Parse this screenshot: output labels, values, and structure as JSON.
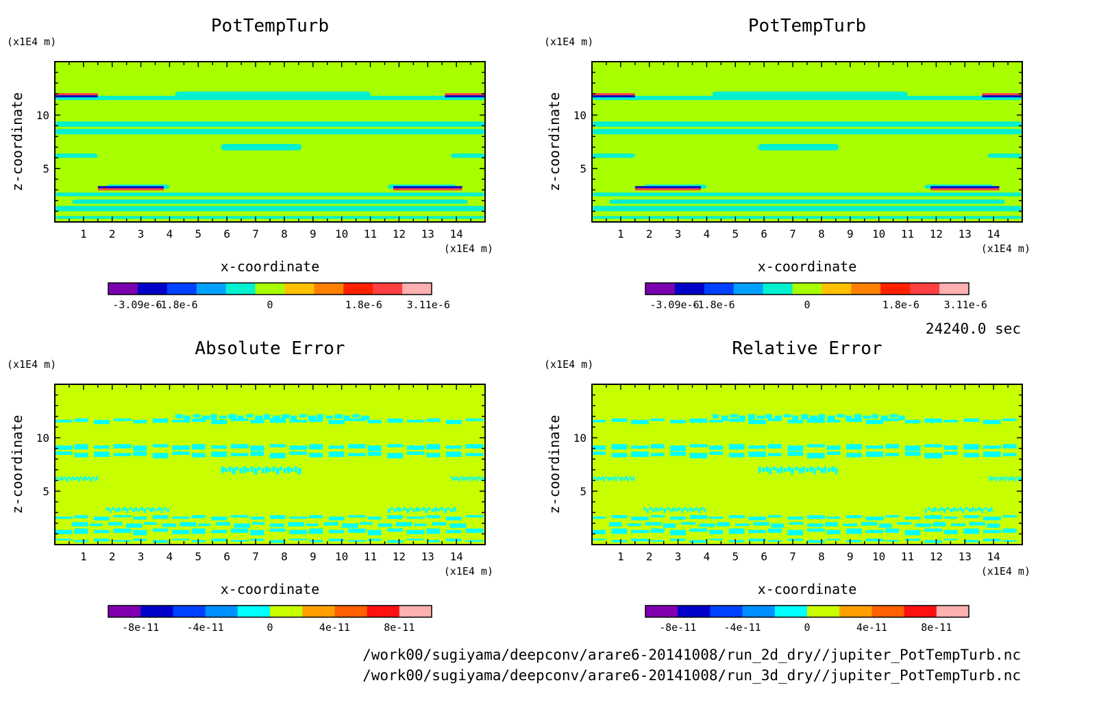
{
  "timestamp": "24240.0 sec",
  "footer": {
    "lines": [
      "/work00/sugiyama/deepconv/arare6-20141008/run_2d_dry//jupiter_PotTempTurb.nc",
      "/work00/sugiyama/deepconv/arare6-20141008/run_3d_dry//jupiter_PotTempTurb.nc"
    ]
  },
  "chart_data": [
    {
      "type": "heatmap",
      "title": "PotTempTurb",
      "xlabel": "x-coordinate",
      "ylabel": "z-coordinate",
      "x_unit": "(x1E4 m)",
      "y_unit": "(x1E4 m)",
      "xlim": [
        0,
        15
      ],
      "ylim": [
        0,
        15
      ],
      "x_ticks": [
        "1",
        "2",
        "3",
        "4",
        "5",
        "6",
        "7",
        "8",
        "9",
        "10",
        "11",
        "12",
        "13",
        "14"
      ],
      "y_ticks": [
        "5",
        "10"
      ],
      "field": "potential temperature perturbation, mostly near zero with thin turbulent layers near z=3e4 m and z=12e4 m",
      "colorbar": {
        "colors": [
          "#7a00b0",
          "#0000c8",
          "#0040ff",
          "#00a0ff",
          "#00f0d0",
          "#a8ff00",
          "#ffc000",
          "#ff8000",
          "#ff2000",
          "#ff4040",
          "#ffb0b0"
        ],
        "tick_labels": [
          "-3.09e-6",
          "-1.8e-6",
          "0",
          "1.8e-6",
          "3.11e-6"
        ]
      }
    },
    {
      "type": "heatmap",
      "title": "PotTempTurb",
      "xlabel": "x-coordinate",
      "ylabel": "z-coordinate",
      "x_unit": "(x1E4 m)",
      "y_unit": "(x1E4 m)",
      "xlim": [
        0,
        15
      ],
      "ylim": [
        0,
        15
      ],
      "x_ticks": [
        "1",
        "2",
        "3",
        "4",
        "5",
        "6",
        "7",
        "8",
        "9",
        "10",
        "11",
        "12",
        "13",
        "14"
      ],
      "y_ticks": [
        "5",
        "10"
      ],
      "colorbar": {
        "colors": [
          "#7a00b0",
          "#0000c8",
          "#0040ff",
          "#00a0ff",
          "#00f0d0",
          "#a8ff00",
          "#ffc000",
          "#ff8000",
          "#ff2000",
          "#ff4040",
          "#ffb0b0"
        ],
        "tick_labels": [
          "-3.09e-6",
          "-1.8e-6",
          "0",
          "1.8e-6",
          "3.11e-6"
        ]
      }
    },
    {
      "type": "heatmap",
      "title": "Absolute Error",
      "xlabel": "x-coordinate",
      "ylabel": "z-coordinate",
      "x_unit": "(x1E4 m)",
      "y_unit": "(x1E4 m)",
      "xlim": [
        0,
        15
      ],
      "ylim": [
        0,
        15
      ],
      "x_ticks": [
        "1",
        "2",
        "3",
        "4",
        "5",
        "6",
        "7",
        "8",
        "9",
        "10",
        "11",
        "12",
        "13",
        "14"
      ],
      "y_ticks": [
        "5",
        "10"
      ],
      "colorbar": {
        "colors": [
          "#8000b0",
          "#0000c8",
          "#0040ff",
          "#0090ff",
          "#00ffff",
          "#c8ff00",
          "#ffa000",
          "#ff6000",
          "#ff1010",
          "#ffb0b0"
        ],
        "tick_labels": [
          "-8e-11",
          "-4e-11",
          "0",
          "4e-11",
          "8e-11"
        ]
      }
    },
    {
      "type": "heatmap",
      "title": "Relative Error",
      "xlabel": "x-coordinate",
      "ylabel": "z-coordinate",
      "x_unit": "(x1E4 m)",
      "y_unit": "(x1E4 m)",
      "xlim": [
        0,
        15
      ],
      "ylim": [
        0,
        15
      ],
      "x_ticks": [
        "1",
        "2",
        "3",
        "4",
        "5",
        "6",
        "7",
        "8",
        "9",
        "10",
        "11",
        "12",
        "13",
        "14"
      ],
      "y_ticks": [
        "5",
        "10"
      ],
      "colorbar": {
        "colors": [
          "#8000b0",
          "#0000c8",
          "#0040ff",
          "#0090ff",
          "#00ffff",
          "#c8ff00",
          "#ffa000",
          "#ff6000",
          "#ff1010",
          "#ffb0b0"
        ],
        "tick_labels": [
          "-8e-11",
          "-4e-11",
          "0",
          "4e-11",
          "8e-11"
        ]
      }
    }
  ]
}
